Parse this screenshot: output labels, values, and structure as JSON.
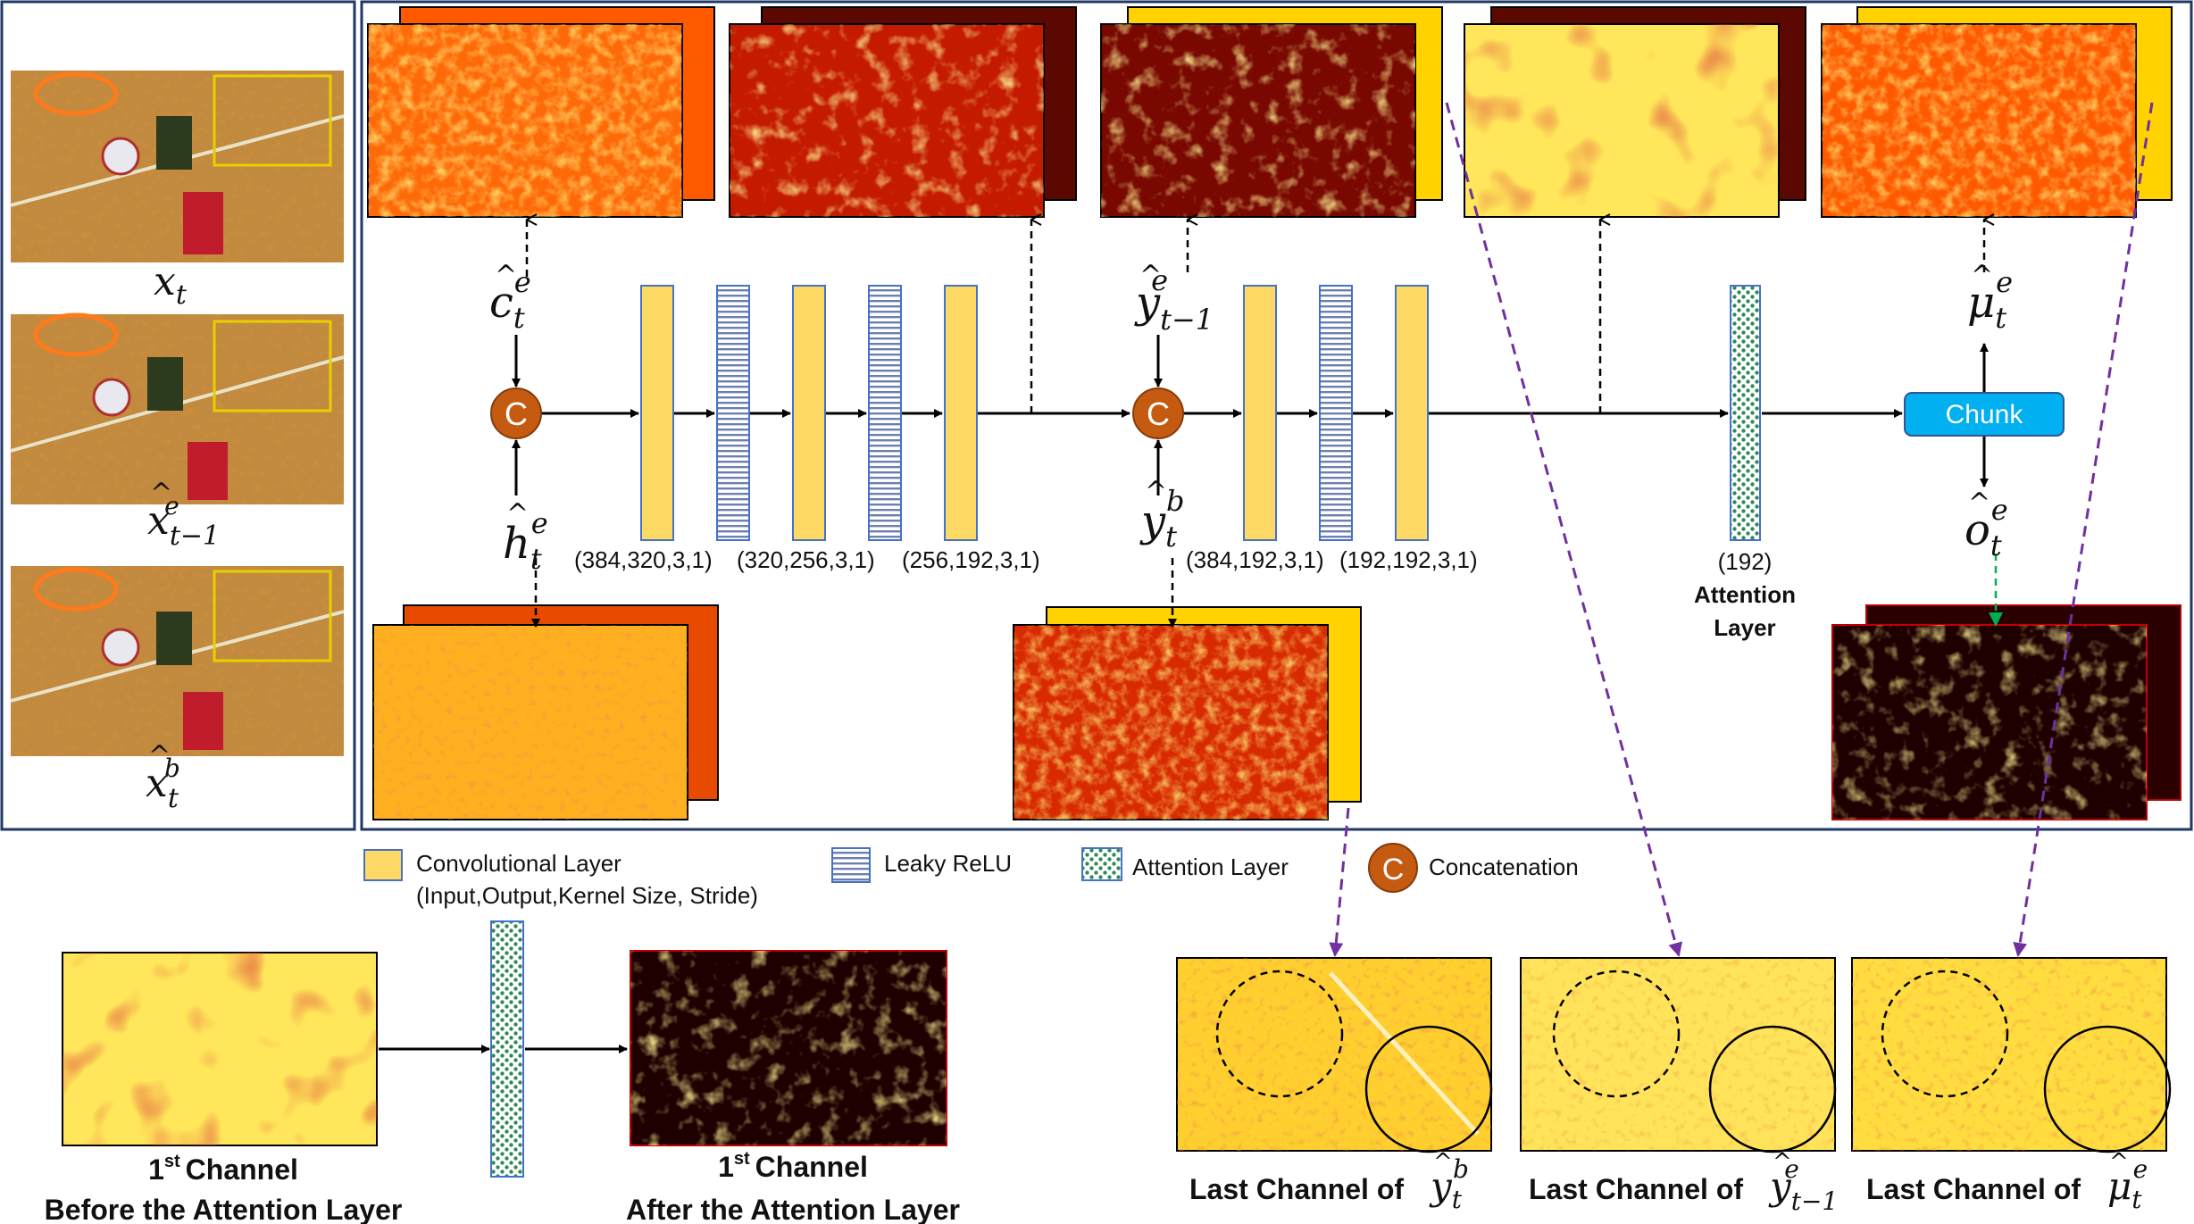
{
  "frames": [
    {
      "base": "x",
      "sub": "t",
      "sup": "",
      "hat": false
    },
    {
      "base": "x",
      "sub": "t−1",
      "sup": "e",
      "hat": true
    },
    {
      "base": "x",
      "sub": "t",
      "sup": "b",
      "hat": true
    }
  ],
  "symbols": {
    "c_hat": {
      "base": "c",
      "sub": "t",
      "sup": "e"
    },
    "h_hat": {
      "base": "h",
      "sub": "t",
      "sup": "e"
    },
    "y_prev": {
      "base": "y",
      "sub": "t−1",
      "sup": "e"
    },
    "y_b": {
      "base": "y",
      "sub": "t",
      "sup": "b"
    },
    "mu": {
      "base": "μ",
      "sub": "t",
      "sup": "e"
    },
    "o": {
      "base": "o",
      "sub": "t",
      "sup": "e"
    }
  },
  "concat_symbol": "C",
  "chunk_label": "Chunk",
  "layer_params": {
    "block1": [
      "(384,320,3,1)",
      "(320,256,3,1)",
      "(256,192,3,1)"
    ],
    "block2": [
      "(384,192,3,1)",
      "(192,192,3,1)"
    ],
    "attention": "(192)"
  },
  "attention_caption": [
    "Attention",
    "Layer"
  ],
  "legend": {
    "conv": "Convolutional Layer",
    "conv_sub": "(Input,Output,Kernel Size, Stride)",
    "leaky": "Leaky ReLU",
    "attention": "Attention Layer",
    "concat": "Concatenation"
  },
  "bottom_left": {
    "before_caption_num": "1",
    "before_caption_sup": "st",
    "before_caption_word": "Channel",
    "before_caption_line2": "Before the Attention Layer",
    "after_caption_num": "1",
    "after_caption_sup": "st",
    "after_caption_word": "Channel",
    "after_caption_line2": "After the Attention Layer"
  },
  "last_channel_prefix": "Last Channel of",
  "colors": {
    "conv": "#FFD966",
    "conv_border": "#4472C4",
    "concat": "#C55A11",
    "chunk": "#00B0F0",
    "panel_border": "#1F3864",
    "arrow_purple": "#7030A0",
    "arrow_green": "#00B050",
    "frame_red": "#C00000"
  }
}
